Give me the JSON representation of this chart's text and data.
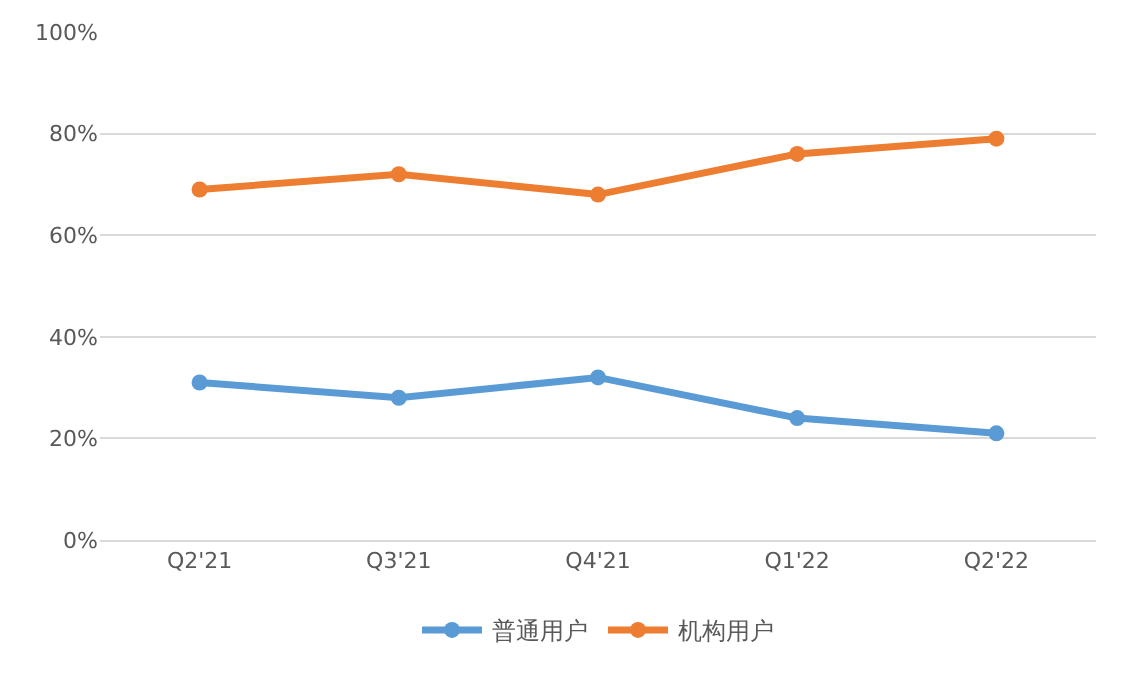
{
  "chart_data": {
    "type": "line",
    "categories": [
      "Q2'21",
      "Q3'21",
      "Q4'21",
      "Q1'22",
      "Q2'22"
    ],
    "series": [
      {
        "name": "普通用户",
        "color": "#5b9bd5",
        "values": [
          31,
          28,
          32,
          24,
          21
        ]
      },
      {
        "name": "机构用户",
        "color": "#ed7d31",
        "values": [
          69,
          72,
          68,
          76,
          79
        ]
      }
    ],
    "ylim": [
      0,
      100
    ],
    "yticks": [
      {
        "value": 0,
        "label": "0%"
      },
      {
        "value": 20,
        "label": "20%"
      },
      {
        "value": 40,
        "label": "40%"
      },
      {
        "value": 60,
        "label": "60%"
      },
      {
        "value": 80,
        "label": "80%"
      },
      {
        "value": 100,
        "label": "100%"
      }
    ],
    "grid": "y",
    "legend": "bottom",
    "marker": "circle",
    "line_style": "solid"
  }
}
